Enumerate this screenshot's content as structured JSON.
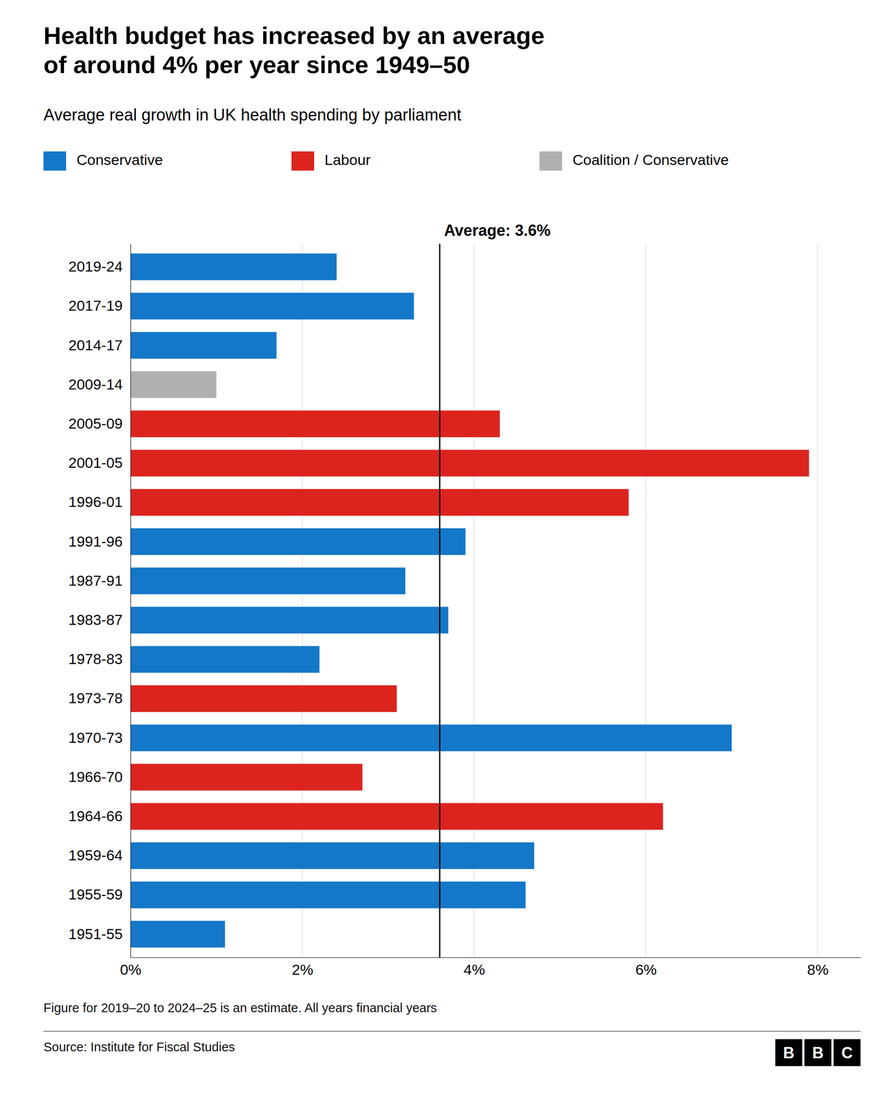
{
  "chart_data": {
    "type": "bar",
    "orientation": "horizontal",
    "title": "Health budget has increased by an average\nof around 4% per year since 1949–50",
    "subtitle": "Average real growth in UK health spending by parliament",
    "footnote": "Figure for 2019–20 to 2024–25 is an estimate. All years financial years",
    "source": "Source: Institute for Fiscal Studies",
    "logo": [
      "B",
      "B",
      "C"
    ],
    "categories": [
      "2019-24",
      "2017-19",
      "2014-17",
      "2009-14",
      "2005-09",
      "2001-05",
      "1996-01",
      "1991-96",
      "1987-91",
      "1983-87",
      "1978-83",
      "1973-78",
      "1970-73",
      "1966-70",
      "1964-66",
      "1959-64",
      "1955-59",
      "1951-55"
    ],
    "values": [
      2.4,
      3.3,
      1.7,
      1.0,
      4.3,
      7.9,
      5.8,
      3.9,
      3.2,
      3.7,
      2.2,
      3.1,
      7.0,
      2.7,
      6.2,
      4.7,
      4.6,
      1.1
    ],
    "colors": [
      "#1478C8",
      "#1478C8",
      "#1478C8",
      "#B0B0B0",
      "#DC241F",
      "#DC241F",
      "#DC241F",
      "#1478C8",
      "#1478C8",
      "#1478C8",
      "#1478C8",
      "#DC241F",
      "#1478C8",
      "#DC241F",
      "#DC241F",
      "#1478C8",
      "#1478C8",
      "#1478C8"
    ],
    "legend": "upper left",
    "legend_entries": [
      {
        "label": "Conservative",
        "color": "#1478C8"
      },
      {
        "label": "Labour",
        "color": "#DC241F"
      },
      {
        "label": "Coalition / Conservative",
        "color": "#B0B0B0"
      }
    ],
    "annotations": [
      {
        "text": "Average: 3.6%",
        "value": 3.6
      }
    ],
    "xlim": [
      0,
      8.5
    ],
    "xticks": [
      {
        "value": 0,
        "label": "0%"
      },
      {
        "value": 2,
        "label": "2%"
      },
      {
        "value": 4,
        "label": "4%"
      },
      {
        "value": 6,
        "label": "6%"
      },
      {
        "value": 8,
        "label": "8%"
      }
    ],
    "grid": true
  }
}
